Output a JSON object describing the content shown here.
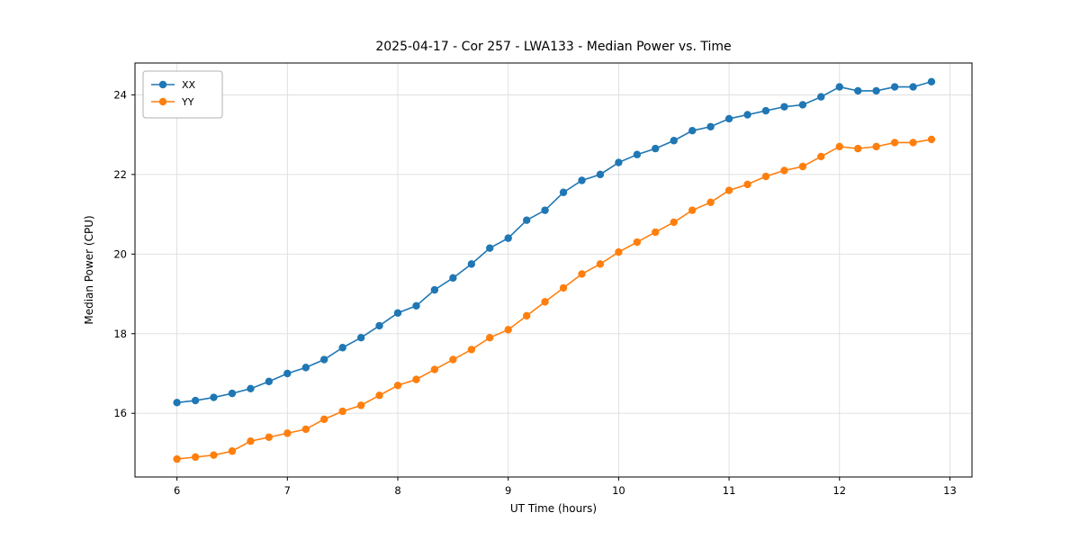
{
  "chart_data": {
    "type": "line",
    "title": "2025-04-17 - Cor 257 - LWA133 - Median Power vs. Time",
    "xlabel": "UT Time (hours)",
    "ylabel": "Median Power (CPU)",
    "xlim": [
      5.62,
      13.2
    ],
    "ylim": [
      14.4,
      24.8
    ],
    "xticks": [
      6,
      7,
      8,
      9,
      10,
      11,
      12,
      13
    ],
    "yticks": [
      16,
      18,
      20,
      22,
      24
    ],
    "grid": true,
    "legend_position": "upper left",
    "x": [
      6.0,
      6.167,
      6.333,
      6.5,
      6.667,
      6.833,
      7.0,
      7.167,
      7.333,
      7.5,
      7.667,
      7.833,
      8.0,
      8.167,
      8.333,
      8.5,
      8.667,
      8.833,
      9.0,
      9.167,
      9.333,
      9.5,
      9.667,
      9.833,
      10.0,
      10.167,
      10.333,
      10.5,
      10.667,
      10.833,
      11.0,
      11.167,
      11.333,
      11.5,
      11.667,
      11.833,
      12.0,
      12.167,
      12.333,
      12.5,
      12.667,
      12.833
    ],
    "series": [
      {
        "name": "XX",
        "color": "#1f77b4",
        "values": [
          16.27,
          16.32,
          16.4,
          16.5,
          16.62,
          16.8,
          17.0,
          17.15,
          17.35,
          17.65,
          17.9,
          18.2,
          18.52,
          18.7,
          19.1,
          19.4,
          19.75,
          20.15,
          20.4,
          20.85,
          21.1,
          21.55,
          21.85,
          22.0,
          22.3,
          22.5,
          22.65,
          22.85,
          23.1,
          23.2,
          23.4,
          23.5,
          23.6,
          23.7,
          23.75,
          23.95,
          24.2,
          24.1,
          24.1,
          24.2,
          24.2,
          24.33
        ]
      },
      {
        "name": "YY",
        "color": "#ff7f0e",
        "values": [
          14.85,
          14.9,
          14.95,
          15.05,
          15.3,
          15.4,
          15.5,
          15.6,
          15.85,
          16.05,
          16.2,
          16.45,
          16.7,
          16.85,
          17.1,
          17.35,
          17.6,
          17.9,
          18.1,
          18.45,
          18.8,
          19.15,
          19.5,
          19.75,
          20.05,
          20.3,
          20.55,
          20.8,
          21.1,
          21.3,
          21.6,
          21.75,
          21.95,
          22.1,
          22.2,
          22.45,
          22.7,
          22.65,
          22.7,
          22.8,
          22.8,
          22.88
        ]
      }
    ],
    "plot_style": {
      "grid_color": "#dddddd",
      "spine_color": "#000000",
      "marker_radius": 4.2,
      "line_width": 1.6
    }
  }
}
